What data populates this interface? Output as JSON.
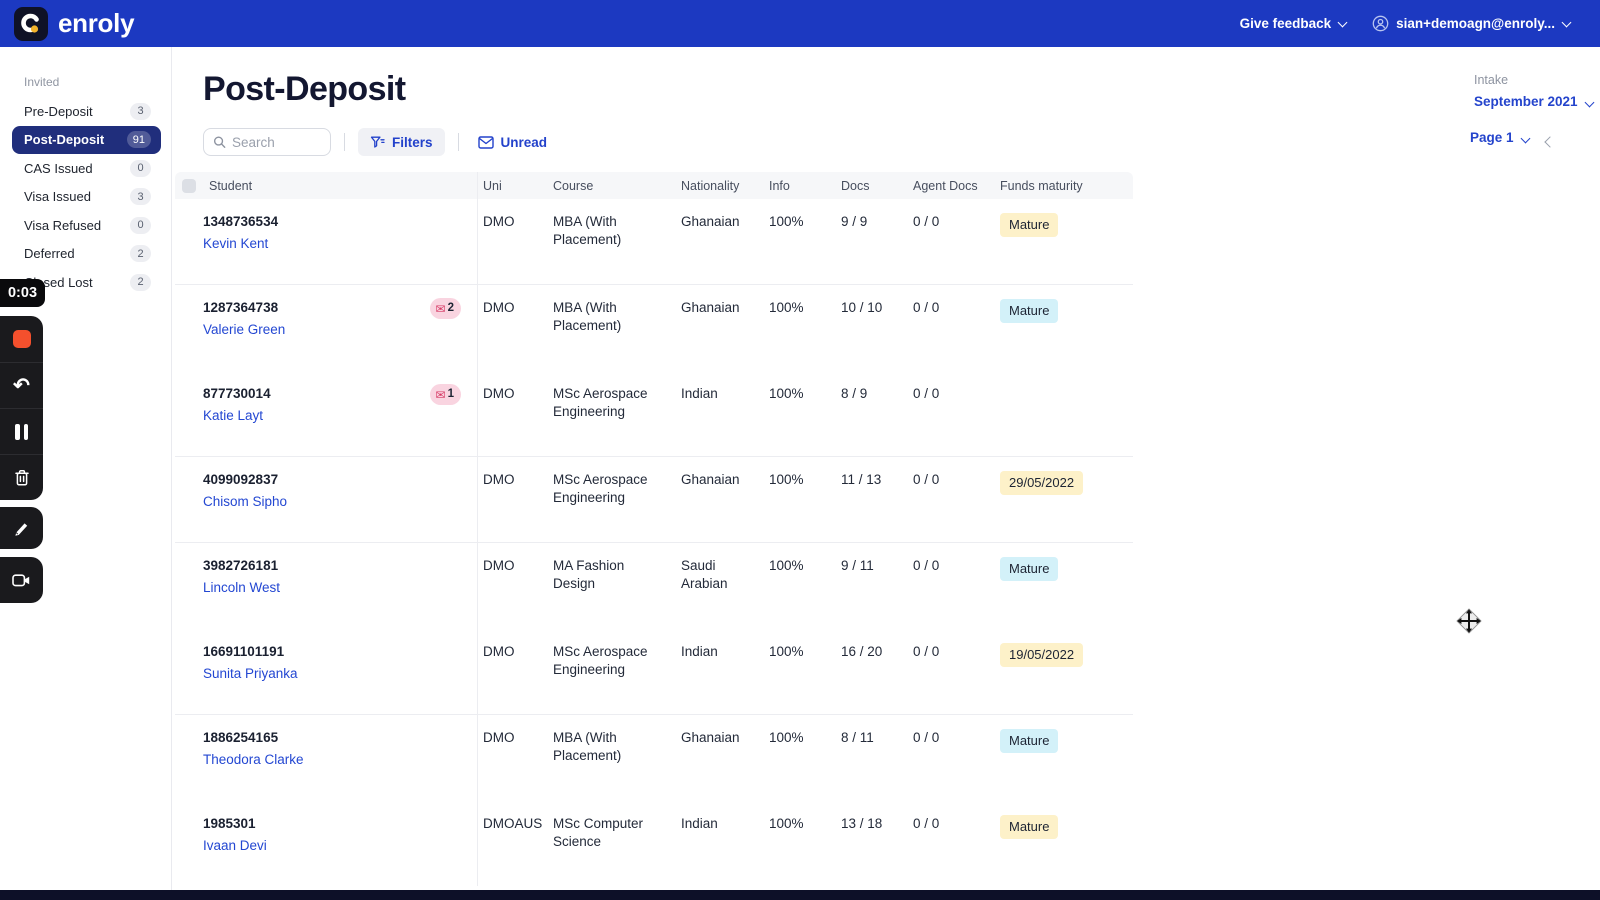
{
  "app": {
    "brand": "enroly",
    "give_feedback_label": "Give feedback",
    "user_email": "sian+demoagn@enroly...",
    "header_bg": "#1c39c1",
    "bottom_bar_color": "#0d1028"
  },
  "icons": {
    "envelope": "✉",
    "undo": "↶"
  },
  "sidebar": {
    "section_label": "Invited",
    "selected_bg": "#202e7c",
    "items": [
      {
        "label": "Pre-Deposit",
        "count": "3",
        "selected": false
      },
      {
        "label": "Post-Deposit",
        "count": "91",
        "selected": true
      },
      {
        "label": "CAS Issued",
        "count": "0",
        "selected": false
      },
      {
        "label": "Visa Issued",
        "count": "3",
        "selected": false
      },
      {
        "label": "Visa Refused",
        "count": "0",
        "selected": false
      },
      {
        "label": "Deferred",
        "count": "2",
        "selected": false
      },
      {
        "label": "Closed Lost",
        "count": "2",
        "selected": false
      }
    ]
  },
  "recorder": {
    "timer": "0:03",
    "stop_color": "#f4502d"
  },
  "page": {
    "title": "Post-Deposit",
    "search_placeholder": "Search",
    "filters_label": "Filters",
    "unread_label": "Unread",
    "intake_label": "Intake",
    "intake_value": "September 2021",
    "pagination_label": "Page 1",
    "accent_blue": "#2342cb"
  },
  "table": {
    "columns": [
      "Student",
      "Uni",
      "Course",
      "Nationality",
      "Info",
      "Docs",
      "Agent Docs",
      "Funds maturity"
    ],
    "badge_colors": {
      "yellow": "#fdf1c9",
      "cyan": "#d3f1f9",
      "mail_bg": "#f9d4e0",
      "mail_icon": "#d63964"
    },
    "rows": [
      {
        "id": "1348736534",
        "name": "Kevin Kent",
        "mail": "",
        "uni": "DMO",
        "course": "MBA (With Placement)",
        "nationality": "Ghanaian",
        "info": "100%",
        "docs": "9 / 9",
        "agent_docs": "0 / 0",
        "funds": "Mature",
        "funds_style": "yellow",
        "divider_after": true
      },
      {
        "id": "1287364738",
        "name": "Valerie Green",
        "mail": "2",
        "uni": "DMO",
        "course": "MBA (With Placement)",
        "nationality": "Ghanaian",
        "info": "100%",
        "docs": "10 / 10",
        "agent_docs": "0 / 0",
        "funds": "Mature",
        "funds_style": "cyan",
        "divider_after": false
      },
      {
        "id": "877730014",
        "name": "Katie Layt",
        "mail": "1",
        "uni": "DMO",
        "course": "MSc Aerospace Engineering",
        "nationality": "Indian",
        "info": "100%",
        "docs": "8 / 9",
        "agent_docs": "0 / 0",
        "funds": "",
        "funds_style": "",
        "divider_after": true
      },
      {
        "id": "4099092837",
        "name": "Chisom Sipho",
        "mail": "",
        "uni": "DMO",
        "course": "MSc Aerospace Engineering",
        "nationality": "Ghanaian",
        "info": "100%",
        "docs": "11 / 13",
        "agent_docs": "0 / 0",
        "funds": "29/05/2022",
        "funds_style": "yellow",
        "divider_after": true
      },
      {
        "id": "3982726181",
        "name": "Lincoln West",
        "mail": "",
        "uni": "DMO",
        "course": "MA Fashion Design",
        "nationality": "Saudi Arabian",
        "info": "100%",
        "docs": "9 / 11",
        "agent_docs": "0 / 0",
        "funds": "Mature",
        "funds_style": "cyan",
        "divider_after": false
      },
      {
        "id": "16691101191",
        "name": "Sunita Priyanka",
        "mail": "",
        "uni": "DMO",
        "course": "MSc Aerospace Engineering",
        "nationality": "Indian",
        "info": "100%",
        "docs": "16 / 20",
        "agent_docs": "0 / 0",
        "funds": "19/05/2022",
        "funds_style": "yellow",
        "divider_after": true
      },
      {
        "id": "1886254165",
        "name": "Theodora Clarke",
        "mail": "",
        "uni": "DMO",
        "course": "MBA (With Placement)",
        "nationality": "Ghanaian",
        "info": "100%",
        "docs": "8 / 11",
        "agent_docs": "0 / 0",
        "funds": "Mature",
        "funds_style": "cyan",
        "divider_after": false
      },
      {
        "id": "1985301",
        "name": "Ivaan Devi",
        "mail": "",
        "uni": "DMOAUS",
        "course": "MSc Computer Science",
        "nationality": "Indian",
        "info": "100%",
        "docs": "13 / 18",
        "agent_docs": "0 / 0",
        "funds": "Mature",
        "funds_style": "yellow",
        "divider_after": false
      }
    ]
  }
}
